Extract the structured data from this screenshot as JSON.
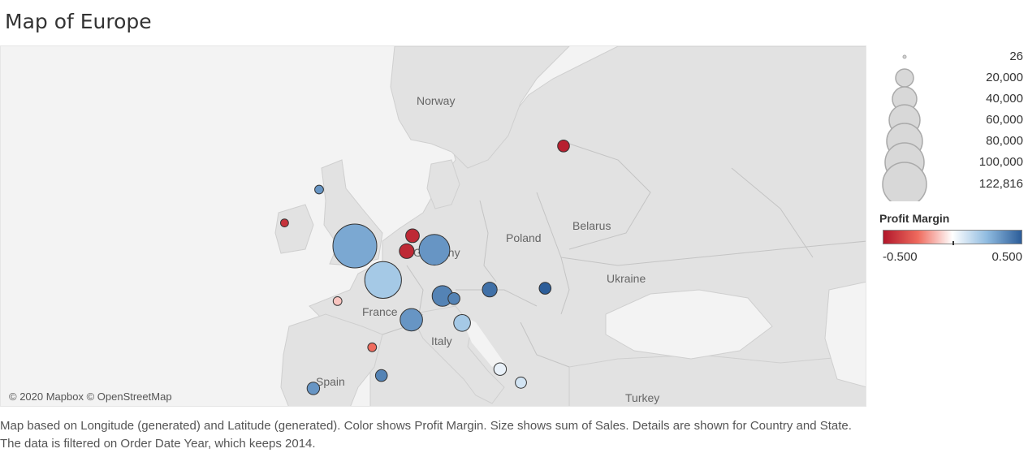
{
  "title": "Map of Europe",
  "attribution": "© 2020 Mapbox © OpenStreetMap",
  "map_labels": [
    {
      "id": "norway",
      "text": "Norway"
    },
    {
      "id": "poland",
      "text": "Poland"
    },
    {
      "id": "belarus",
      "text": "Belarus"
    },
    {
      "id": "ukraine",
      "text": "Ukraine"
    },
    {
      "id": "turkey",
      "text": "Turkey"
    },
    {
      "id": "germany",
      "text": "Germany"
    },
    {
      "id": "france",
      "text": "France"
    },
    {
      "id": "italy",
      "text": "Italy"
    },
    {
      "id": "spain",
      "text": "Spain"
    }
  ],
  "size_legend": {
    "labels": [
      "26",
      "20,000",
      "40,000",
      "60,000",
      "80,000",
      "100,000",
      "122,816"
    ]
  },
  "color_legend": {
    "title": "Profit Margin",
    "min_label": "-0.500",
    "max_label": "0.500",
    "colors": [
      "#b2182b",
      "#ef6b5e",
      "#ffffff",
      "#8fbbe0",
      "#2c5d99"
    ]
  },
  "caption": "Map based on Longitude (generated) and Latitude (generated).  Color shows Profit Margin.  Size shows sum of Sales.  Details are shown for Country and State. The data is filtered on Order Date Year, which keeps 2014.",
  "chart_data": {
    "type": "scatter",
    "title": "Map of Europe",
    "size_measure": "Sales",
    "color_measure": "Profit Margin",
    "size_range": [
      26,
      122816
    ],
    "color_range": [
      -0.5,
      0.5
    ],
    "points": [
      {
        "lon": -0.1,
        "lat": 51.5,
        "sales": 122816,
        "margin": 0.3
      },
      {
        "lon": 2.35,
        "lat": 48.85,
        "sales": 86000,
        "margin": 0.2
      },
      {
        "lon": 6.8,
        "lat": 51.2,
        "sales": 60000,
        "margin": 0.35
      },
      {
        "lon": 4.8,
        "lat": 45.75,
        "sales": 32000,
        "margin": 0.35
      },
      {
        "lon": 7.5,
        "lat": 47.6,
        "sales": 27000,
        "margin": 0.4
      },
      {
        "lon": 4.9,
        "lat": 52.3,
        "sales": 12000,
        "margin": -0.45
      },
      {
        "lon": 4.4,
        "lat": 51.1,
        "sales": 14000,
        "margin": -0.45
      },
      {
        "lon": 18.0,
        "lat": 59.3,
        "sales": 9000,
        "margin": -0.48
      },
      {
        "lon": -6.2,
        "lat": 53.3,
        "sales": 4000,
        "margin": -0.42
      },
      {
        "lon": -3.2,
        "lat": 55.9,
        "sales": 5000,
        "margin": 0.35
      },
      {
        "lon": 9.2,
        "lat": 45.5,
        "sales": 18000,
        "margin": 0.2
      },
      {
        "lon": 12.5,
        "lat": 41.9,
        "sales": 10000,
        "margin": 0.05
      },
      {
        "lon": 2.2,
        "lat": 41.4,
        "sales": 9000,
        "margin": 0.4
      },
      {
        "lon": -3.7,
        "lat": 40.4,
        "sales": 10000,
        "margin": 0.35
      },
      {
        "lon": 14.3,
        "lat": 40.85,
        "sales": 8000,
        "margin": 0.1
      },
      {
        "lon": 16.4,
        "lat": 48.2,
        "sales": 9000,
        "margin": 0.5
      },
      {
        "lon": 1.4,
        "lat": 43.6,
        "sales": 5000,
        "margin": -0.25
      },
      {
        "lon": -1.6,
        "lat": 47.2,
        "sales": 5000,
        "margin": -0.1
      },
      {
        "lon": 8.5,
        "lat": 47.4,
        "sales": 9000,
        "margin": 0.4
      },
      {
        "lon": 11.6,
        "lat": 48.1,
        "sales": 14000,
        "margin": 0.45
      }
    ]
  }
}
